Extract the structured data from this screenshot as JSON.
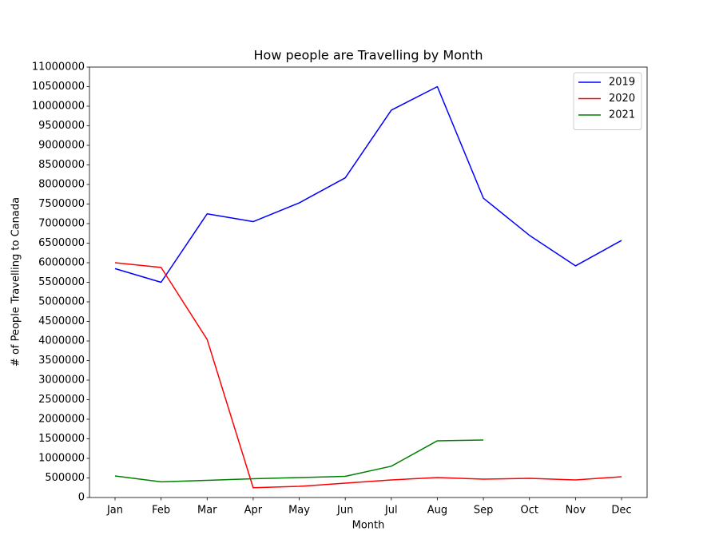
{
  "chart_data": {
    "type": "line",
    "title": "How people are Travelling by Month",
    "x_label": "Month",
    "y_label": "# of People Travelling to Canada",
    "categories": [
      "Jan",
      "Feb",
      "Mar",
      "Apr",
      "May",
      "Jun",
      "Jul",
      "Aug",
      "Sep",
      "Oct",
      "Nov",
      "Dec"
    ],
    "series": [
      {
        "name": "2019",
        "color": "#0000ff",
        "values": [
          5850000,
          5500000,
          7250000,
          7050000,
          7530000,
          8170000,
          9900000,
          10500000,
          7650000,
          6700000,
          5920000,
          6570000
        ]
      },
      {
        "name": "2020",
        "color": "#ff0000",
        "values": [
          6000000,
          5880000,
          4040000,
          250000,
          285000,
          367000,
          450000,
          510000,
          470000,
          490000,
          450000,
          530000
        ]
      },
      {
        "name": "2021",
        "color": "#008000",
        "values": [
          550000,
          400000,
          440000,
          480000,
          510000,
          540000,
          800000,
          1450000,
          1470000,
          null,
          null,
          null
        ]
      }
    ],
    "ylim": [
      0,
      11000000
    ],
    "yticks": [
      0,
      500000,
      1000000,
      1500000,
      2000000,
      2500000,
      3000000,
      3500000,
      4000000,
      4500000,
      5000000,
      5500000,
      6000000,
      6500000,
      7000000,
      7500000,
      8000000,
      8500000,
      9000000,
      9500000,
      10000000,
      10500000,
      11000000
    ],
    "legend": "upper right",
    "grid": false
  }
}
